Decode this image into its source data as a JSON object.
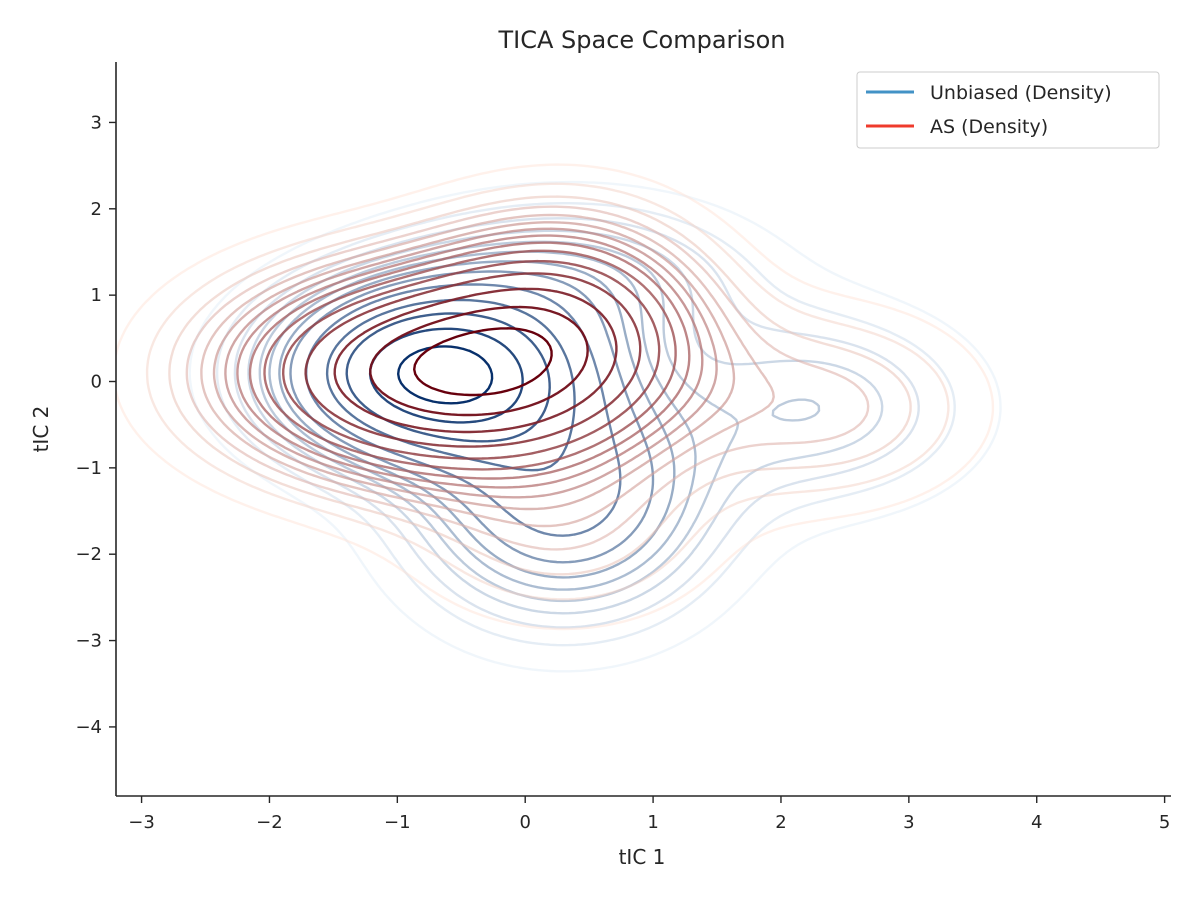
{
  "chart_data": {
    "type": "contour",
    "title": "TICA Space Comparison",
    "xlabel": "tIC 1",
    "ylabel": "tIC 2",
    "xlim": [
      -3.2,
      5.05
    ],
    "ylim": [
      -4.8,
      3.7
    ],
    "xticks": [
      -3,
      -2,
      -1,
      0,
      1,
      2,
      3,
      4,
      5
    ],
    "yticks": [
      -4,
      -3,
      -2,
      -1,
      0,
      1,
      2,
      3
    ],
    "xtick_labels": [
      "−3",
      "−2",
      "−1",
      "0",
      "1",
      "2",
      "3",
      "4",
      "5"
    ],
    "ytick_labels": [
      "−4",
      "−3",
      "−2",
      "−1",
      "0",
      "1",
      "2",
      "3"
    ],
    "legend_position": "top-right",
    "grid": false,
    "series": [
      {
        "name": "Unbiased (Density)",
        "legend_color": "#4292c6",
        "color_low": "#deebf7",
        "color_high": "#08306b",
        "components": [
          {
            "weight": 1.0,
            "mean": [
              -0.7,
              0.1
            ],
            "sd": [
              0.75,
              0.65
            ]
          },
          {
            "weight": 0.45,
            "mean": [
              0.3,
              -1.35
            ],
            "sd": [
              0.75,
              0.9
            ]
          },
          {
            "weight": 0.18,
            "mean": [
              2.3,
              -0.3
            ],
            "sd": [
              0.8,
              0.75
            ]
          },
          {
            "weight": 0.2,
            "mean": [
              0.4,
              1.2
            ],
            "sd": [
              0.9,
              0.6
            ]
          }
        ],
        "levels": [
          0.035,
          0.07,
          0.105,
          0.14,
          0.175,
          0.21,
          0.25,
          0.3,
          0.38,
          0.5,
          0.62,
          0.76,
          0.9
        ]
      },
      {
        "name": "AS (Density)",
        "legend_color": "#ef3b2c",
        "color_low": "#fee0d2",
        "color_high": "#67000d",
        "components": [
          {
            "weight": 1.0,
            "mean": [
              -0.7,
              0.1
            ],
            "sd": [
              1.0,
              0.75
            ]
          },
          {
            "weight": 0.5,
            "mean": [
              0.3,
              0.7
            ],
            "sd": [
              0.7,
              0.8
            ]
          },
          {
            "weight": 0.16,
            "mean": [
              2.35,
              -0.3
            ],
            "sd": [
              0.8,
              0.75
            ]
          },
          {
            "weight": 0.14,
            "mean": [
              0.3,
              -1.7
            ],
            "sd": [
              0.8,
              0.75
            ]
          }
        ],
        "levels": [
          0.035,
          0.065,
          0.095,
          0.125,
          0.155,
          0.185,
          0.215,
          0.25,
          0.29,
          0.34,
          0.41,
          0.5,
          0.62,
          0.76,
          0.9
        ]
      }
    ]
  }
}
